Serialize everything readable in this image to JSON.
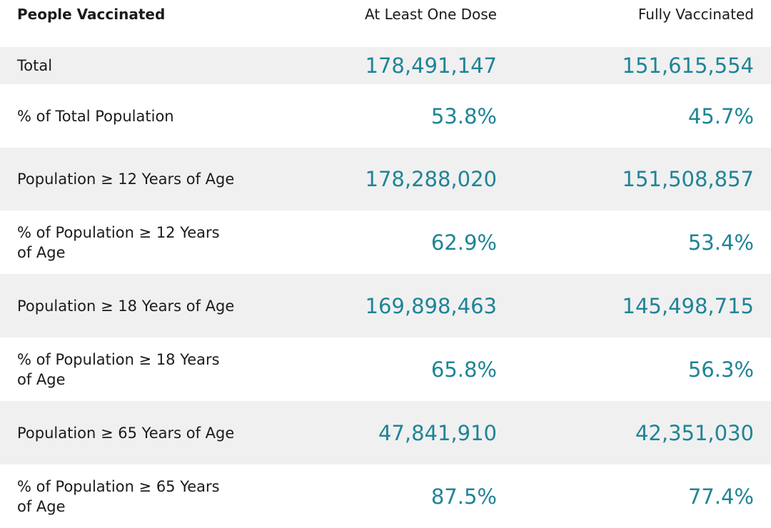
{
  "header": {
    "label": "People Vaccinated",
    "col_a": "At Least One Dose",
    "col_b": "Fully Vaccinated"
  },
  "rows": [
    {
      "label": "Total",
      "at_least_one_dose": "178,491,147",
      "fully_vaccinated": "151,615,554"
    },
    {
      "label": "% of Total Population",
      "at_least_one_dose": "53.8%",
      "fully_vaccinated": "45.7%"
    },
    {
      "label": "Population ≥ 12 Years of Age",
      "at_least_one_dose": "178,288,020",
      "fully_vaccinated": "151,508,857"
    },
    {
      "label": "% of Population ≥ 12 Years of Age",
      "at_least_one_dose": "62.9%",
      "fully_vaccinated": "53.4%"
    },
    {
      "label": "Population ≥ 18 Years of Age",
      "at_least_one_dose": "169,898,463",
      "fully_vaccinated": "145,498,715"
    },
    {
      "label": "% of Population ≥ 18 Years of Age",
      "at_least_one_dose": "65.8%",
      "fully_vaccinated": "56.3%"
    },
    {
      "label": "Population ≥ 65 Years of Age",
      "at_least_one_dose": "47,841,910",
      "fully_vaccinated": "42,351,030"
    },
    {
      "label": "% of Population ≥ 65 Years of Age",
      "at_least_one_dose": "87.5%",
      "fully_vaccinated": "77.4%"
    }
  ],
  "colors": {
    "value_text": "#1f8497",
    "shaded_row": "#f0f0f0"
  }
}
